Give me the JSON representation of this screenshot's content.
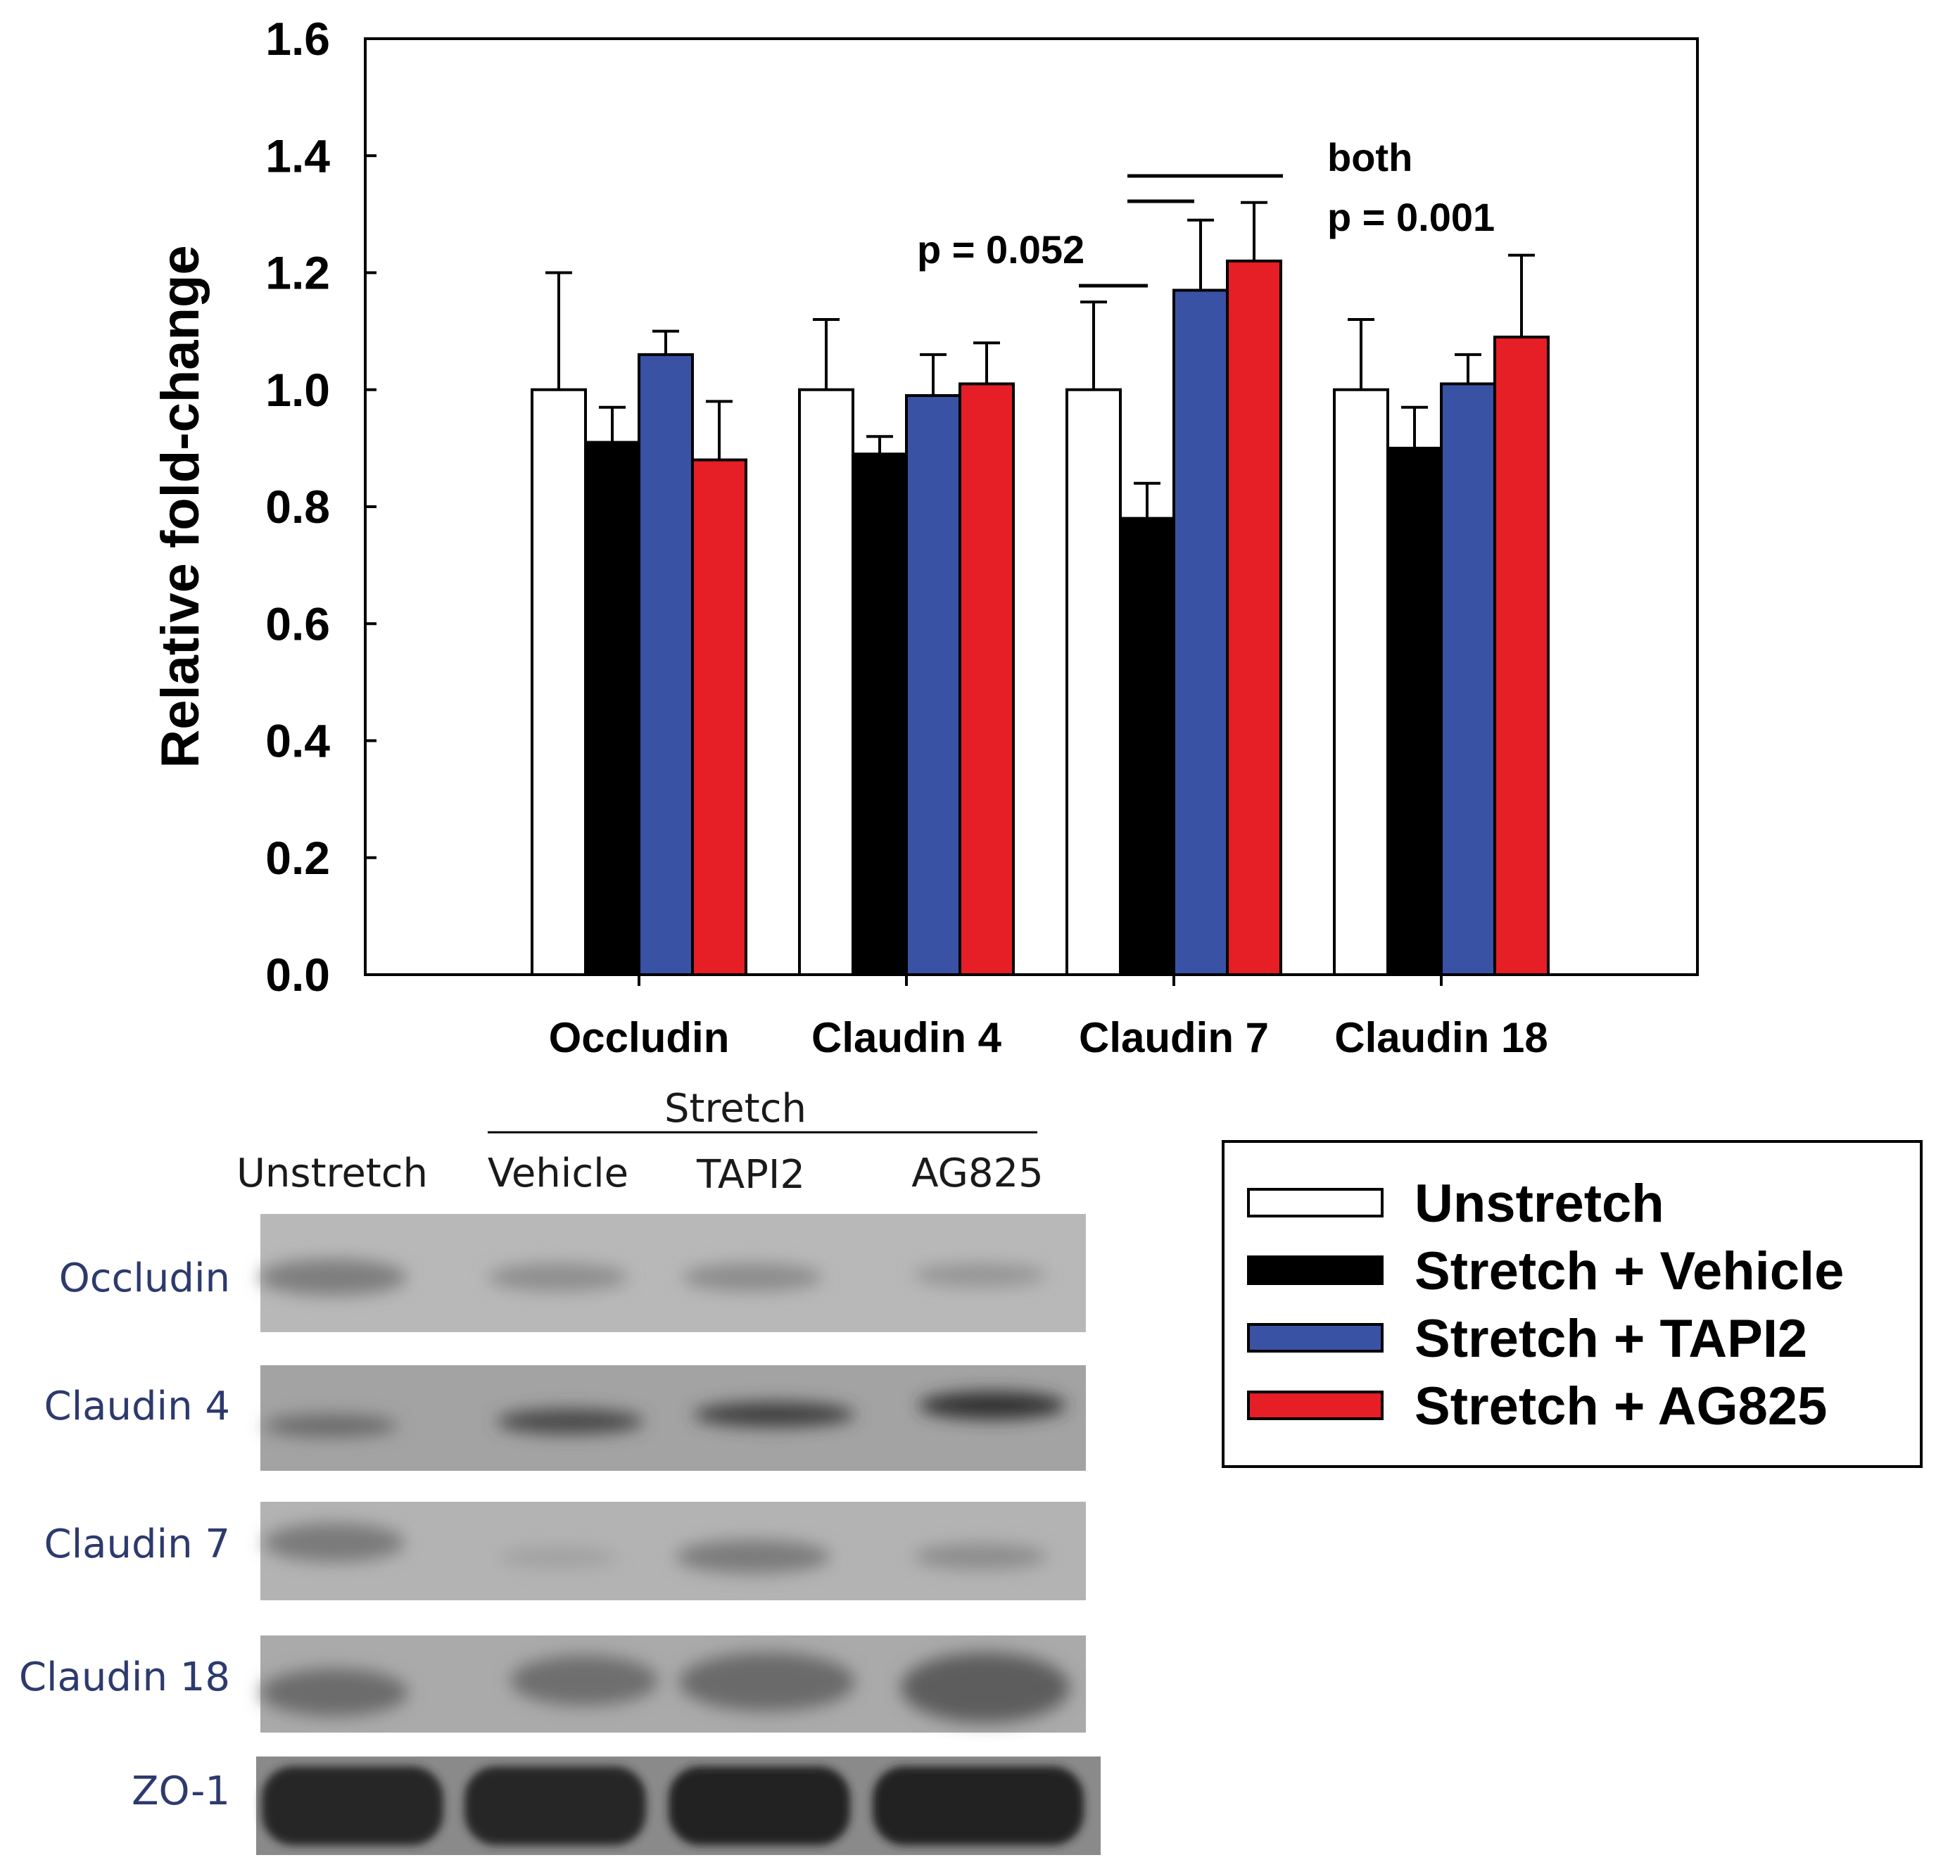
{
  "chart_data": {
    "type": "bar",
    "ylabel": "Relative fold-change",
    "ylim": [
      0,
      1.6
    ],
    "yticks": [
      "0.0",
      "0.2",
      "0.4",
      "0.6",
      "0.8",
      "1.0",
      "1.2",
      "1.4",
      "1.6"
    ],
    "categories": [
      "Occludin",
      "Claudin 4",
      "Claudin 7",
      "Claudin 18"
    ],
    "series": [
      {
        "name": "Unstretch",
        "color": "#ffffff",
        "values": [
          1.0,
          1.0,
          1.0,
          1.0
        ],
        "errors": [
          0.2,
          0.12,
          0.15,
          0.12
        ]
      },
      {
        "name": "Stretch + Vehicle",
        "color": "#000000",
        "values": [
          0.91,
          0.89,
          0.78,
          0.9
        ],
        "errors": [
          0.06,
          0.03,
          0.06,
          0.07
        ]
      },
      {
        "name": "Stretch + TAPI2",
        "color": "#3a52a4",
        "values": [
          1.06,
          0.99,
          1.17,
          1.01
        ],
        "errors": [
          0.04,
          0.07,
          0.12,
          0.05
        ]
      },
      {
        "name": "Stretch + AG825",
        "color": "#e61e25",
        "values": [
          0.88,
          1.01,
          1.22,
          1.09
        ],
        "errors": [
          0.1,
          0.07,
          0.1,
          0.14
        ]
      }
    ],
    "annotations": {
      "p052": "p = 0.052",
      "both": "both",
      "p001": "p = 0.001"
    }
  },
  "blot": {
    "group_label": "Stretch",
    "lanes": [
      "Unstretch",
      "Vehicle",
      "TAPI2",
      "AG825"
    ],
    "rows": [
      "Occludin",
      "Claudin 4",
      "Claudin 7",
      "Claudin 18",
      "ZO-1"
    ]
  },
  "legend": {
    "items": [
      {
        "label": "Unstretch",
        "color": "#ffffff"
      },
      {
        "label": "Stretch + Vehicle",
        "color": "#000000"
      },
      {
        "label": "Stretch + TAPI2",
        "color": "#3a52a4"
      },
      {
        "label": "Stretch + AG825",
        "color": "#e61e25"
      }
    ]
  }
}
